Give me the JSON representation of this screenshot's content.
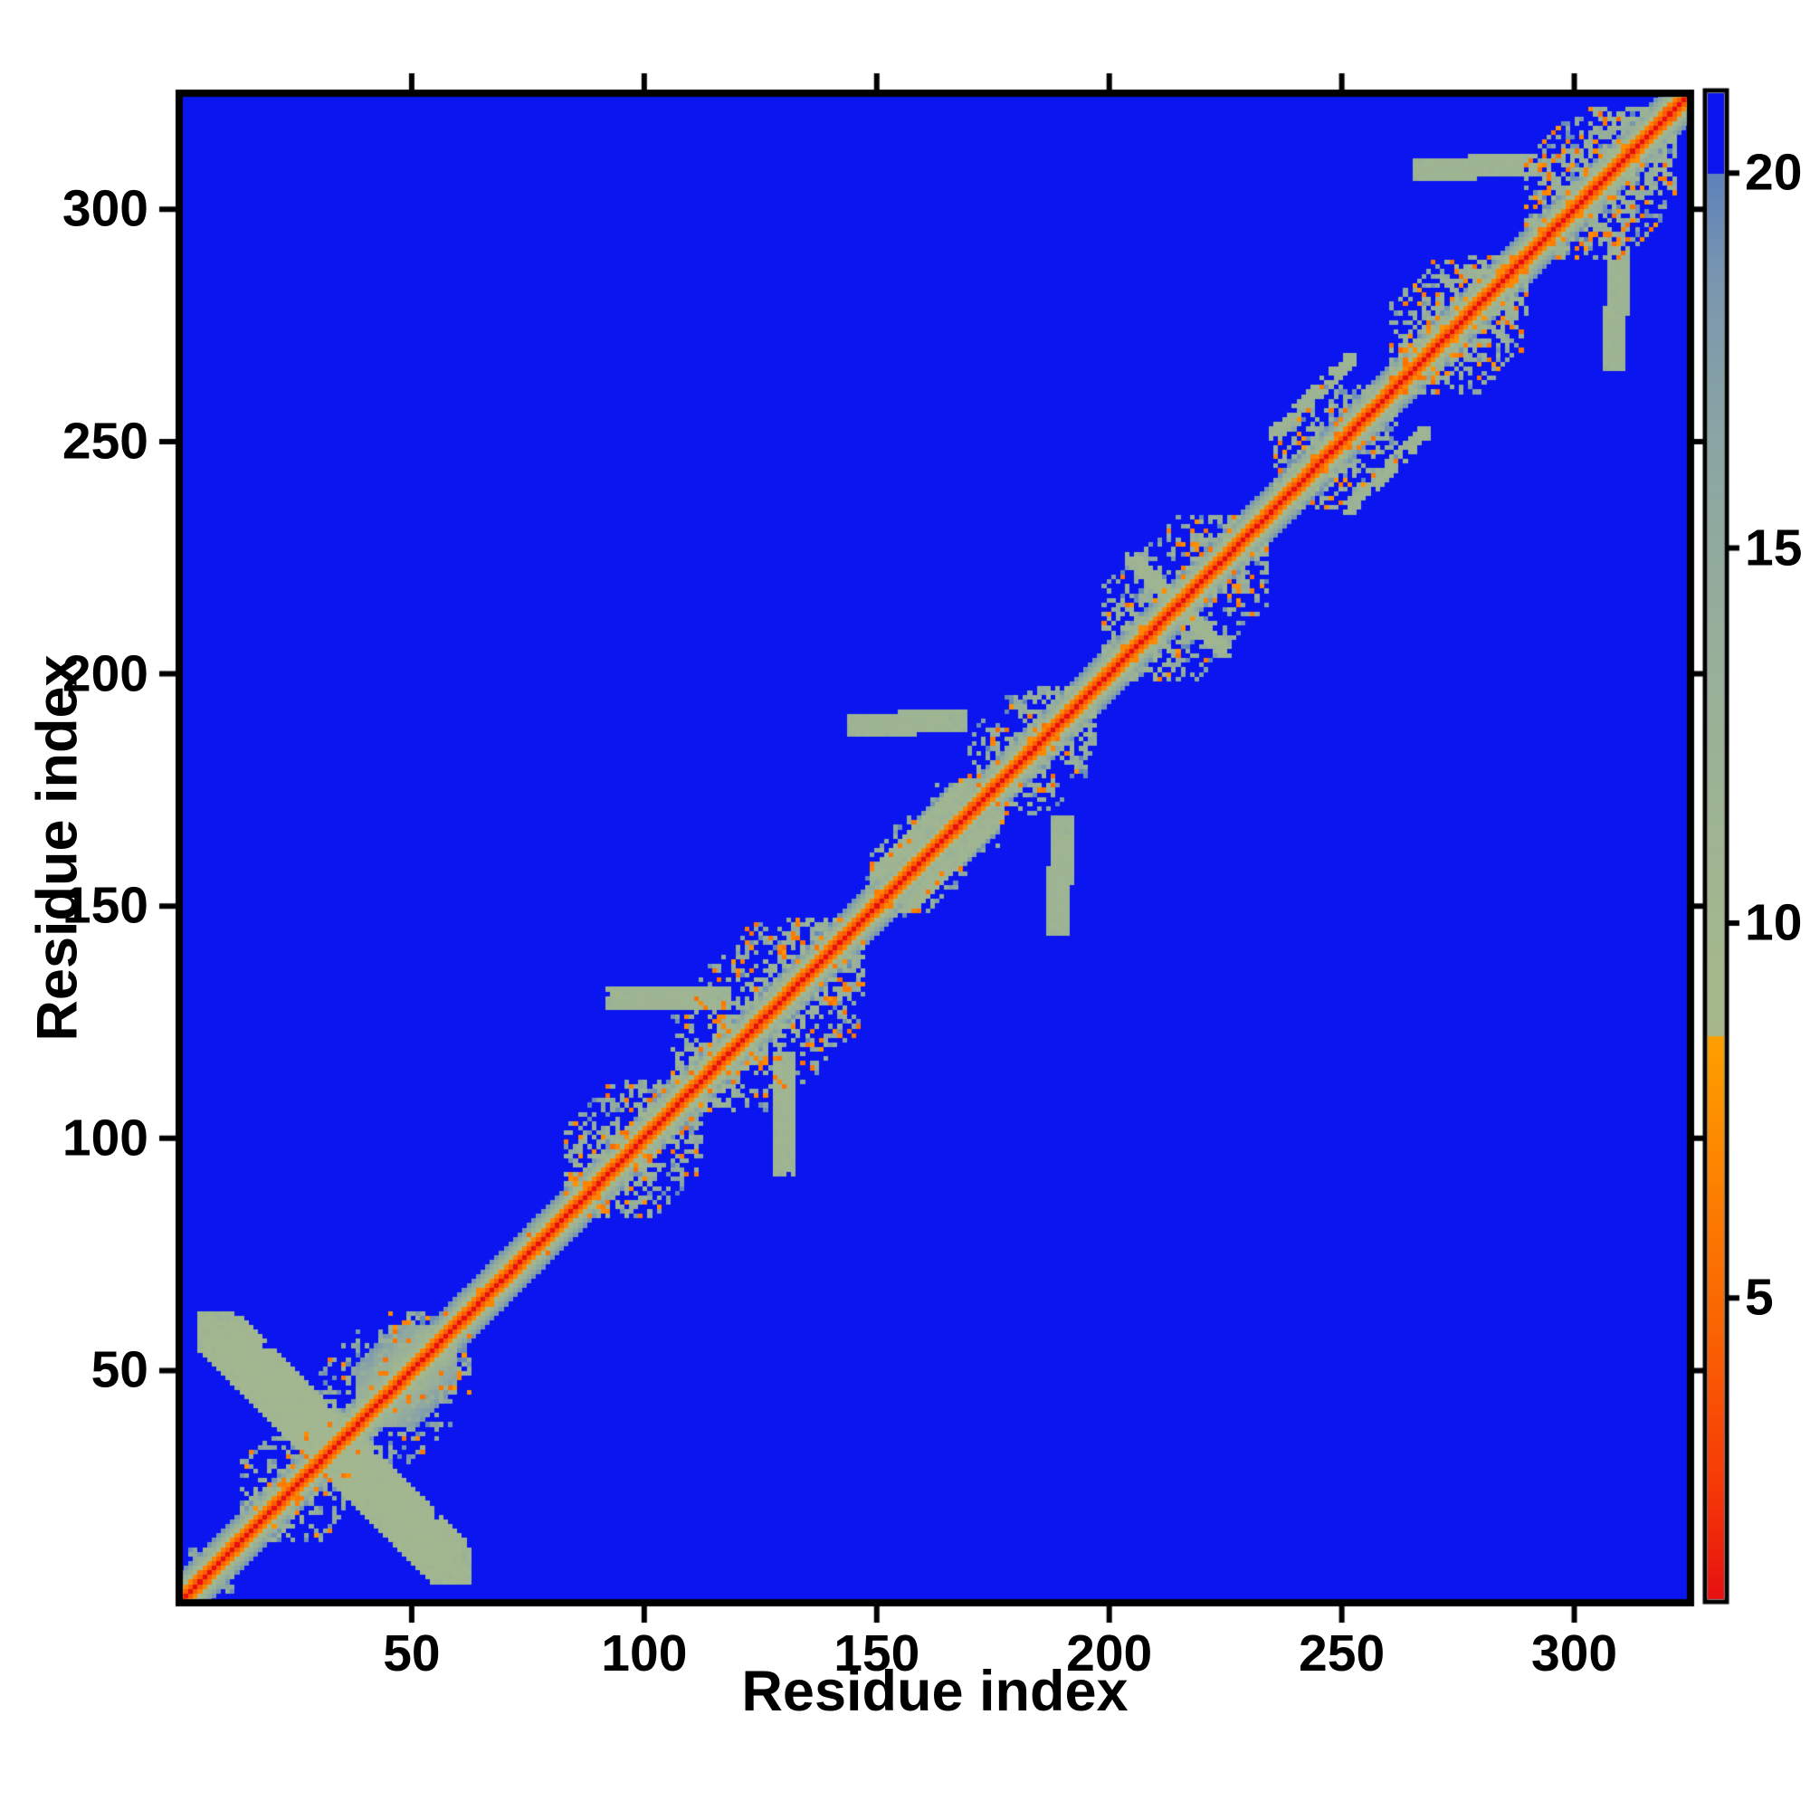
{
  "chart_data": {
    "type": "heatmap",
    "subtype": "protein-residue-distance-matrix",
    "title": "",
    "xlabel": "Residue index",
    "ylabel": "Residue index",
    "x_range": [
      0,
      325
    ],
    "y_range": [
      0,
      325
    ],
    "x_ticks": [
      50,
      100,
      150,
      200,
      250,
      300
    ],
    "y_ticks": [
      50,
      100,
      150,
      200,
      250,
      300
    ],
    "ticks_on_all_sides": true,
    "grid": false,
    "background_color": "#ffffff",
    "far_value_color": "#0a15ef",
    "frame_color": "#000000",
    "colorbar": {
      "position": "right",
      "tick_values": [
        5,
        10,
        15,
        20
      ],
      "vmin": 0.95,
      "vmax": 21.1,
      "orange_cutoff": 8.5,
      "blue_cutoff": 20
    },
    "colormap_stops": [
      [
        0.9,
        "#e60f12"
      ],
      [
        2.5,
        "#f63a06"
      ],
      [
        4.5,
        "#fa6203"
      ],
      [
        6.5,
        "#fd8101"
      ],
      [
        8.49,
        "#ffa000"
      ],
      [
        8.5,
        "#a8ba8a"
      ],
      [
        11.0,
        "#9fb592"
      ],
      [
        14.0,
        "#96ae9b"
      ],
      [
        16.5,
        "#8aa5a4"
      ],
      [
        18.5,
        "#7b97af"
      ],
      [
        19.99,
        "#5e83bc"
      ],
      [
        20.0,
        "#0a15ef"
      ],
      [
        25.0,
        "#0a15ef"
      ]
    ],
    "diagonal_profile": [
      [
        0,
        0.9
      ],
      [
        1,
        4.2
      ],
      [
        2,
        6.8
      ],
      [
        3,
        9.6
      ],
      [
        4,
        12.6
      ],
      [
        5,
        15.8
      ],
      [
        6,
        18.6
      ]
    ],
    "clusters": [
      {
        "start": 1,
        "end": 13,
        "width": 9,
        "density": 0.5,
        "orange": 0.02,
        "smooth": false
      },
      {
        "start": 13,
        "end": 38,
        "width": 17,
        "density": 0.5,
        "orange": 0.04,
        "smooth": false
      },
      {
        "start": 30,
        "end": 62,
        "width": 20,
        "density": 0.45,
        "orange": 0.04,
        "smooth": false
      },
      {
        "start": 38,
        "end": 59,
        "width": 13,
        "density": 1.0,
        "orange": 0.02,
        "smooth": true
      },
      {
        "start": 62,
        "end": 83,
        "width": 4,
        "density": 0.5,
        "orange": 0.02,
        "smooth": false
      },
      {
        "start": 83,
        "end": 112,
        "width": 19,
        "density": 0.6,
        "orange": 0.09,
        "smooth": false
      },
      {
        "start": 106,
        "end": 147,
        "width": 23,
        "density": 0.55,
        "orange": 0.07,
        "smooth": false
      },
      {
        "start": 148,
        "end": 177,
        "width": 13,
        "density": 0.5,
        "orange": 0.04,
        "smooth": false
      },
      {
        "start": 158,
        "end": 176,
        "width": 10,
        "density": 1.0,
        "orange": 0.02,
        "smooth": true
      },
      {
        "start": 170,
        "end": 197,
        "width": 17,
        "density": 0.55,
        "orange": 0.05,
        "smooth": false
      },
      {
        "start": 199,
        "end": 234,
        "width": 20,
        "density": 0.5,
        "orange": 0.06,
        "smooth": false
      },
      {
        "start": 236,
        "end": 262,
        "width": 16,
        "density": 0.55,
        "orange": 0.07,
        "smooth": false
      },
      {
        "start": 261,
        "end": 290,
        "width": 19,
        "density": 0.65,
        "orange": 0.11,
        "smooth": false
      },
      {
        "start": 290,
        "end": 322,
        "width": 21,
        "density": 0.65,
        "orange": 0.11,
        "smooth": false
      }
    ],
    "arms": [
      {
        "x1": 8,
        "y1": 58,
        "x2": 58,
        "y2": 8,
        "thickness": 4,
        "value": 10.0,
        "density": 0.45
      },
      {
        "x1": 94,
        "y1": 130,
        "x2": 116,
        "y2": 130,
        "thickness": 2,
        "value": 11.0,
        "density": 0.7
      },
      {
        "x1": 146,
        "y1": 189,
        "x2": 167,
        "y2": 190,
        "thickness": 2,
        "value": 11.0,
        "density": 0.7
      },
      {
        "x1": 150,
        "y1": 157,
        "x2": 169,
        "y2": 176,
        "thickness": 1,
        "value": 10.5,
        "density": 0.8
      },
      {
        "x1": 205,
        "y1": 225,
        "x2": 222,
        "y2": 208,
        "thickness": 1,
        "value": 10.5,
        "density": 0.6
      },
      {
        "x1": 268,
        "y1": 309,
        "x2": 290,
        "y2": 310,
        "thickness": 2,
        "value": 11.0,
        "density": 0.6
      },
      {
        "x1": 236,
        "y1": 252,
        "x2": 252,
        "y2": 268,
        "thickness": 1,
        "value": 11.0,
        "density": 0.5
      }
    ],
    "noise_seed": 1337
  }
}
